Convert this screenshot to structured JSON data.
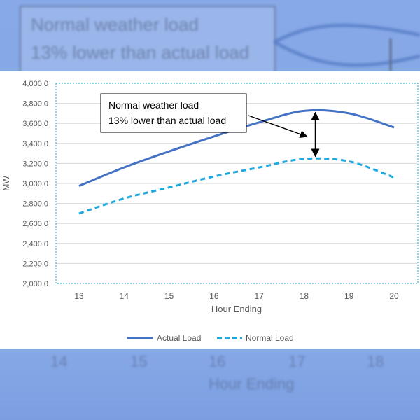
{
  "chart_data": {
    "type": "line",
    "title": "",
    "xlabel": "Hour Ending",
    "ylabel": "MW",
    "categories": [
      "13",
      "14",
      "15",
      "16",
      "17",
      "18",
      "19",
      "20"
    ],
    "ylim": [
      2000,
      4000
    ],
    "yticks": [
      "2,000.0",
      "2,200.0",
      "2,400.0",
      "2,600.0",
      "2,800.0",
      "3,000.0",
      "3,200.0",
      "3,400.0",
      "3,600.0",
      "3,800.0",
      "4,000.0"
    ],
    "series": [
      {
        "name": "Actual Load",
        "style": "solid",
        "color": "#4472c4",
        "values": [
          2975,
          3160,
          3320,
          3470,
          3610,
          3725,
          3700,
          3560
        ]
      },
      {
        "name": "Normal Load",
        "style": "dashed",
        "color": "#1ea8e0",
        "values": [
          2700,
          2850,
          2960,
          3070,
          3160,
          3245,
          3220,
          3060
        ]
      }
    ],
    "annotation": {
      "line1": "Normal weather load",
      "line2": "13% lower than actual load",
      "x_category": 18.25
    },
    "legend_position": "bottom"
  },
  "background": {
    "ghost_line1": "Normal weather load",
    "ghost_line2": "13% lower than actual load",
    "ghost_ticks": [
      "14",
      "15",
      "16",
      "17",
      "18"
    ],
    "ghost_xlabel": "Hour Ending"
  }
}
